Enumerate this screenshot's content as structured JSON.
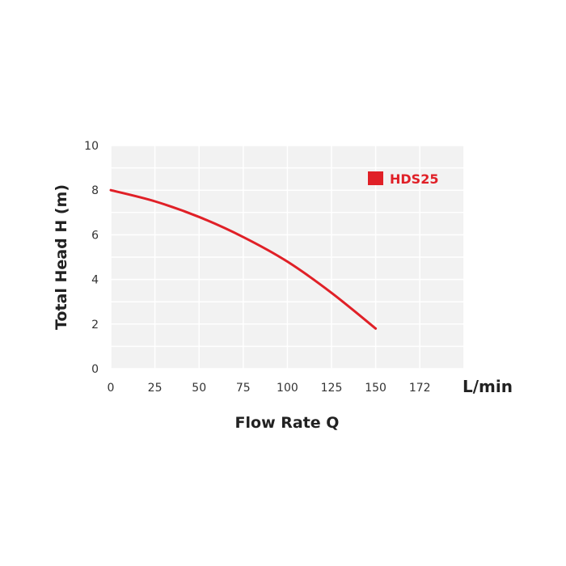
{
  "chart_data": {
    "type": "line",
    "title": "",
    "xlabel": "Flow Rate Q",
    "ylabel": "Total Head H (m)",
    "x_unit": "L/min",
    "x_ticks": [
      "0",
      "25",
      "50",
      "75",
      "100",
      "125",
      "150",
      "172"
    ],
    "y_ticks": [
      "0",
      "2",
      "4",
      "6",
      "8",
      "10"
    ],
    "xlim": [
      0,
      200
    ],
    "ylim": [
      0,
      10
    ],
    "grid": true,
    "legend_position": "top-right",
    "series": [
      {
        "name": "HDS25",
        "color": "#e02027",
        "x": [
          0,
          25,
          50,
          75,
          100,
          125,
          150
        ],
        "y": [
          8.0,
          7.5,
          6.8,
          5.9,
          4.8,
          3.4,
          1.8
        ]
      }
    ]
  },
  "colors": {
    "plot_background": "#f2f2f2",
    "gridline": "#ffffff",
    "series": "#e02027"
  }
}
